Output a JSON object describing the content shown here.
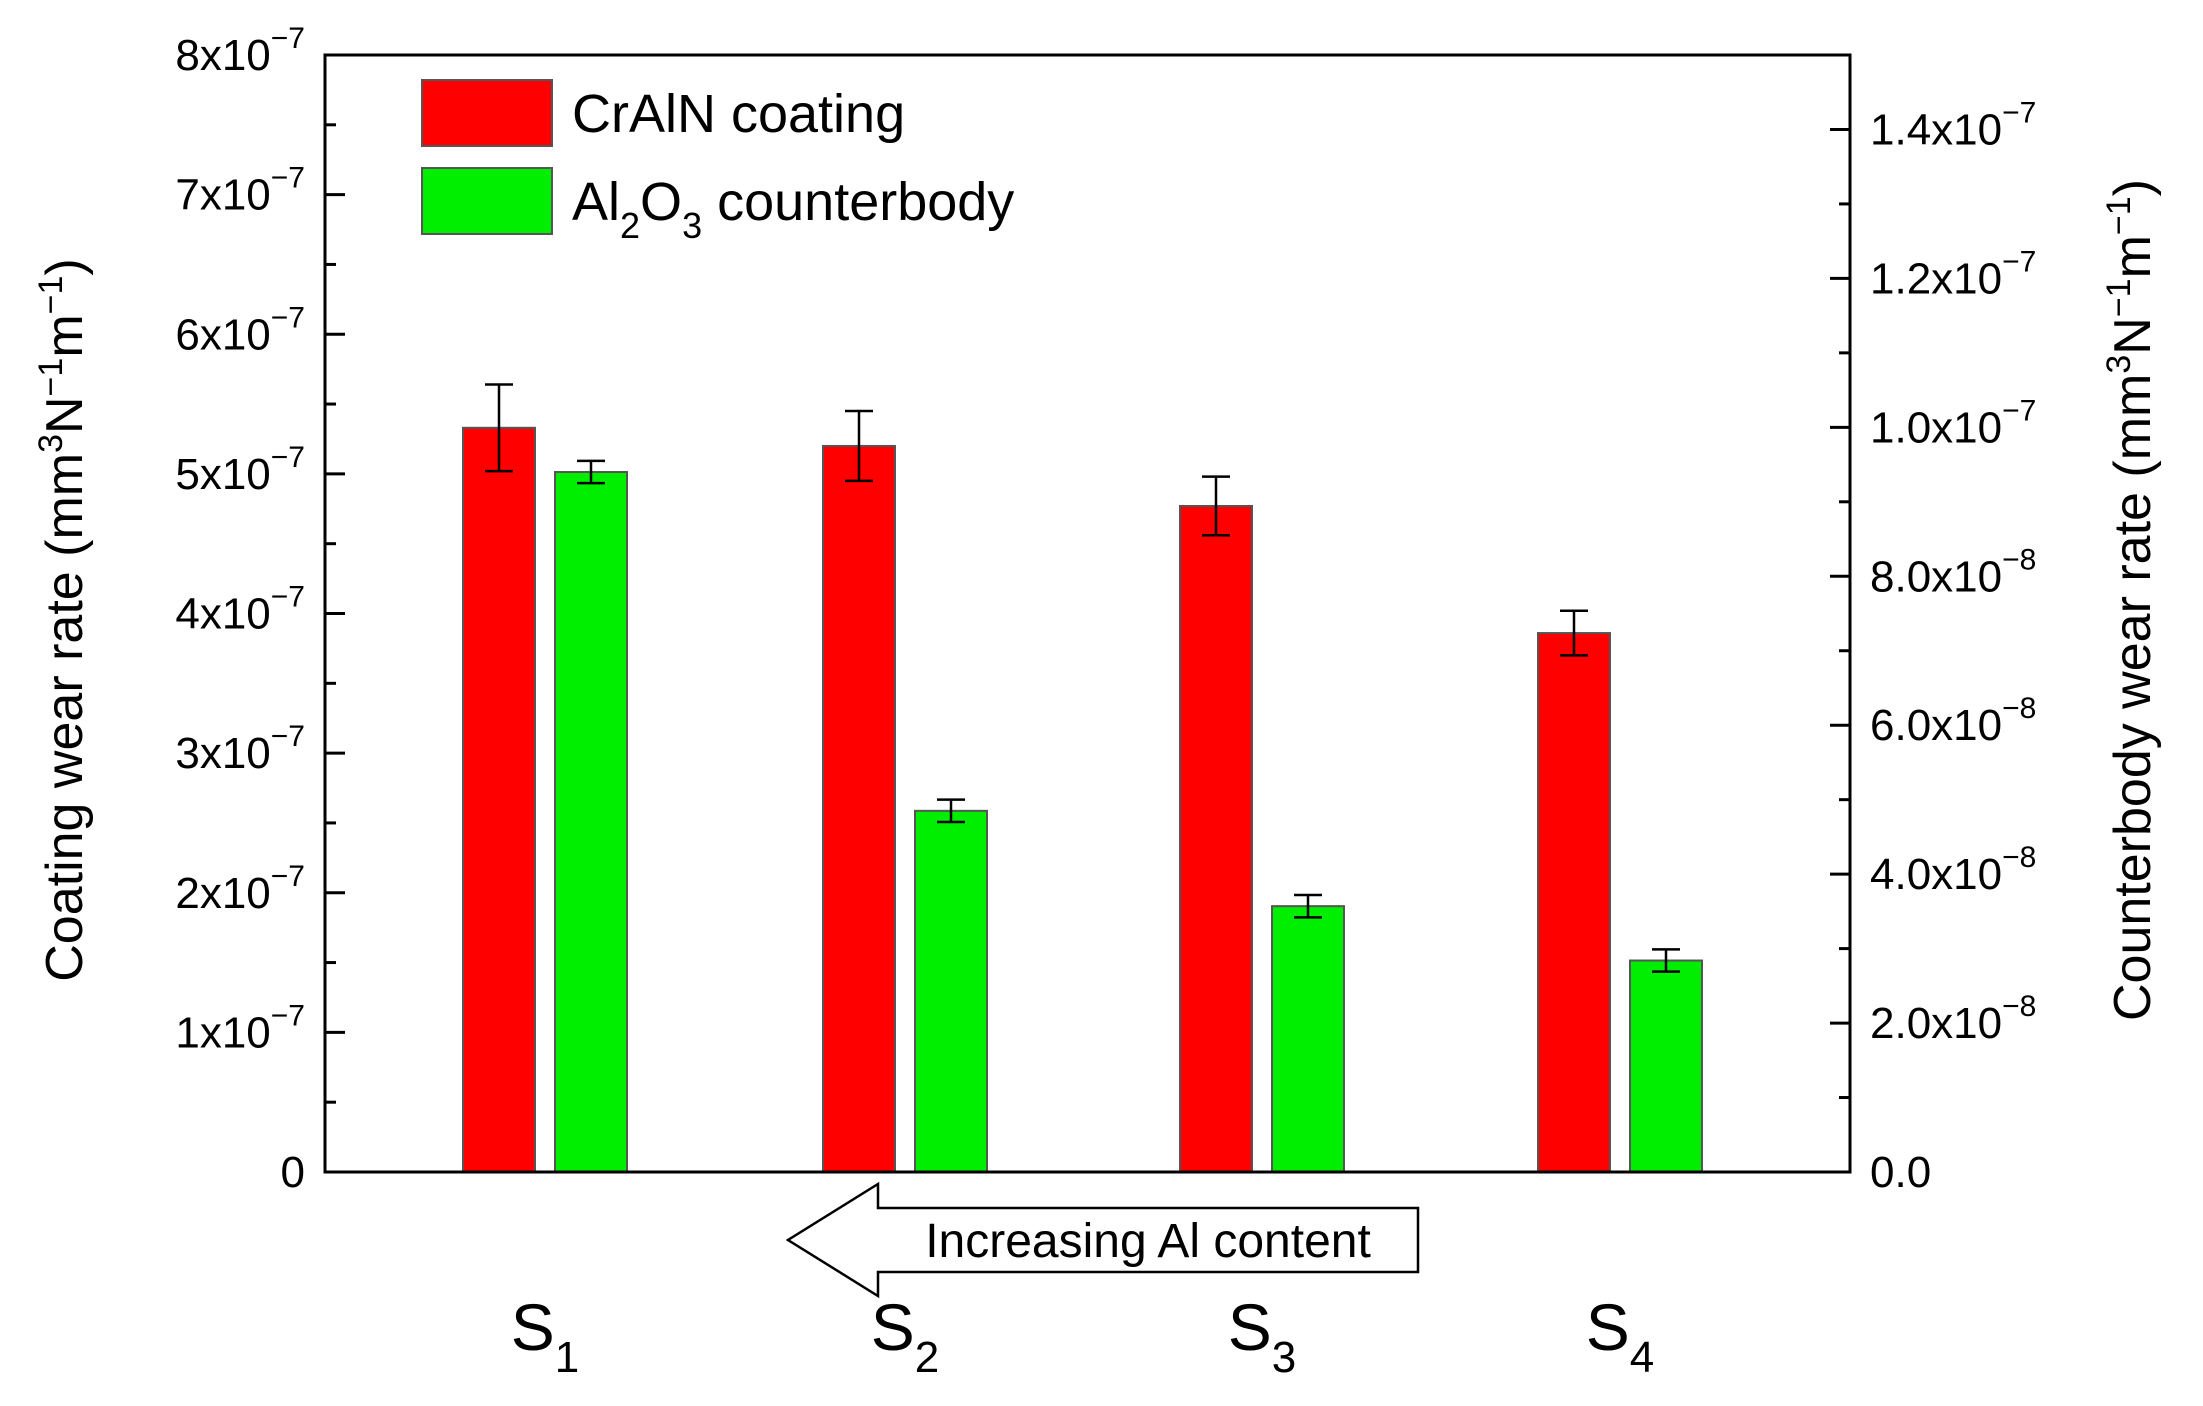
{
  "colors": {
    "coating": "#ff0000",
    "counterbody": "#00ee00",
    "axis": "#000000",
    "bar_outline": "#555555"
  },
  "annotation": {
    "text": "Increasing Al content",
    "arrow_direction": "left"
  },
  "chart_data": {
    "type": "bar",
    "title": "",
    "categories": [
      {
        "base": "S",
        "sub": "1"
      },
      {
        "base": "S",
        "sub": "2"
      },
      {
        "base": "S",
        "sub": "3"
      },
      {
        "base": "S",
        "sub": "4"
      }
    ],
    "series": [
      {
        "name": "CrAlN coating",
        "axis": "left",
        "color": "#ff0000",
        "values": [
          5.33e-07,
          5.2e-07,
          4.77e-07,
          3.86e-07
        ],
        "errors": [
          3.1e-08,
          2.5e-08,
          2.1e-08,
          1.6e-08
        ]
      },
      {
        "name_parts": {
          "a": "Al",
          "a_sub": "2",
          "b": "O",
          "b_sub": "3",
          "rest": " counterbody"
        },
        "axis": "right",
        "color": "#00ee00",
        "values": [
          9.4e-08,
          4.85e-08,
          3.57e-08,
          2.84e-08
        ],
        "errors": [
          1.5e-09,
          1.5e-09,
          1.5e-09,
          1.5e-09
        ]
      }
    ],
    "y_left": {
      "label_main": "Coating wear rate (mm",
      "label_sup1": "3",
      "label_mid1": "N",
      "label_sup2": "−1",
      "label_mid2": "m",
      "label_sup3": "−1",
      "label_end": ")",
      "min": 0,
      "max": 8e-07,
      "ticks": [
        {
          "value": 0,
          "base": "0",
          "exp": ""
        },
        {
          "value": 1e-07,
          "base": "1x10",
          "exp": "−7"
        },
        {
          "value": 2e-07,
          "base": "2x10",
          "exp": "−7"
        },
        {
          "value": 3e-07,
          "base": "3x10",
          "exp": "−7"
        },
        {
          "value": 4e-07,
          "base": "4x10",
          "exp": "−7"
        },
        {
          "value": 5e-07,
          "base": "5x10",
          "exp": "−7"
        },
        {
          "value": 6e-07,
          "base": "6x10",
          "exp": "−7"
        },
        {
          "value": 7e-07,
          "base": "7x10",
          "exp": "−7"
        },
        {
          "value": 8e-07,
          "base": "8x10",
          "exp": "−7"
        }
      ]
    },
    "y_right": {
      "label_main": "Counterbody wear rate (mm",
      "label_sup1": "3",
      "label_mid1": "N",
      "label_sup2": "−1",
      "label_mid2": "m",
      "label_sup3": "−1",
      "label_end": ")",
      "min": 0,
      "max": 1.5e-07,
      "ticks": [
        {
          "value": 0,
          "base": "0.0",
          "exp": ""
        },
        {
          "value": 2e-08,
          "base": "2.0x10",
          "exp": "−8"
        },
        {
          "value": 4e-08,
          "base": "4.0x10",
          "exp": "−8"
        },
        {
          "value": 6e-08,
          "base": "6.0x10",
          "exp": "−8"
        },
        {
          "value": 8e-08,
          "base": "8.0x10",
          "exp": "−8"
        },
        {
          "value": 1e-07,
          "base": "1.0x10",
          "exp": "−7"
        },
        {
          "value": 1.2e-07,
          "base": "1.2x10",
          "exp": "−7"
        },
        {
          "value": 1.4e-07,
          "base": "1.4x10",
          "exp": "−7"
        }
      ]
    },
    "legend": "top-left",
    "grid": false
  }
}
